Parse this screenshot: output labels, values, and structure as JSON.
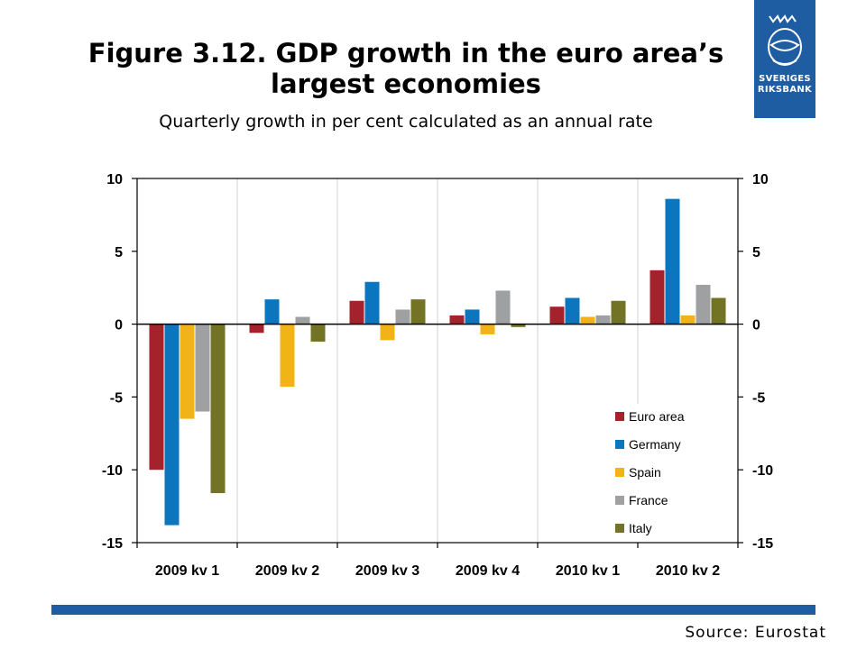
{
  "header": {
    "title": "Figure 3.12. GDP growth in the euro area’s largest economies",
    "subtitle": "Quarterly growth in per cent calculated as an annual rate"
  },
  "logo": {
    "text_line1": "SVERIGES",
    "text_line2": "RIKSBANK",
    "icon": "riksbank-crest-icon"
  },
  "footer": {
    "source": "Source: Eurostat"
  },
  "colors": {
    "brand_blue": "#1f5da3",
    "euro_area": "#a3222c",
    "germany": "#0b76bd",
    "spain": "#f2b316",
    "france": "#9ea0a2",
    "italy": "#737325"
  },
  "chart_data": {
    "type": "bar",
    "title": "",
    "xlabel": "",
    "ylabel": "",
    "categories": [
      "2009 kv 1",
      "2009 kv 2",
      "2009 kv 3",
      "2009 kv 4",
      "2010 kv 1",
      "2010 kv 2"
    ],
    "ylim": [
      -15,
      10
    ],
    "yticks": [
      10,
      5,
      0,
      -5,
      -10,
      -15
    ],
    "secondary_axis_mirrored": true,
    "grid": "vertical category separators",
    "legend_position": "bottom-right",
    "series": [
      {
        "name": "Euro area",
        "color": "#a3222c",
        "values": [
          -10.0,
          -0.6,
          1.6,
          0.6,
          1.2,
          3.7
        ]
      },
      {
        "name": "Germany",
        "color": "#0b76bd",
        "values": [
          -13.8,
          1.7,
          2.9,
          1.0,
          1.8,
          8.6
        ]
      },
      {
        "name": "Spain",
        "color": "#f2b316",
        "values": [
          -6.5,
          -4.3,
          -1.1,
          -0.7,
          0.5,
          0.6
        ]
      },
      {
        "name": "France",
        "color": "#9ea0a2",
        "values": [
          -6.0,
          0.5,
          1.0,
          2.3,
          0.6,
          2.7
        ]
      },
      {
        "name": "Italy",
        "color": "#737325",
        "values": [
          -11.6,
          -1.2,
          1.7,
          -0.2,
          1.6,
          1.8
        ]
      }
    ]
  }
}
